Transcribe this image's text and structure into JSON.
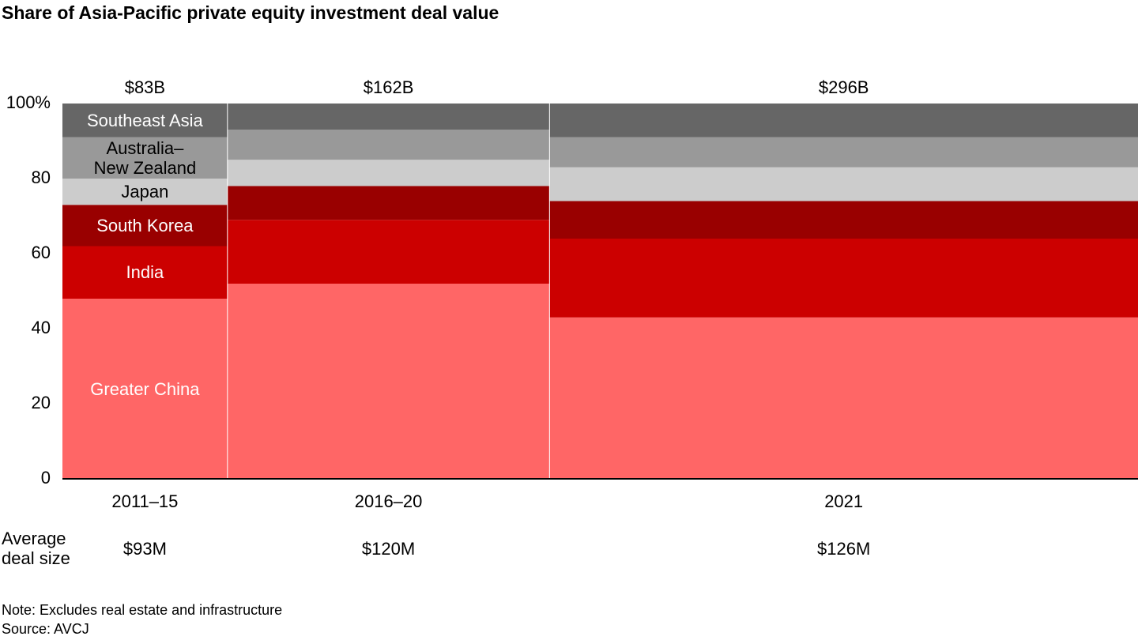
{
  "chart_data": {
    "type": "marimekko",
    "title": "Share of Asia-Pacific private equity investment deal value",
    "categories": [
      "2011–15",
      "2016–20",
      "2021"
    ],
    "totals": [
      83,
      162,
      296
    ],
    "total_labels": [
      "$83B",
      "$162B",
      "$296B"
    ],
    "avg_deal_size_label": "Average\ndeal size",
    "avg_deal_size": [
      93,
      120,
      126
    ],
    "avg_deal_size_labels": [
      "$93M",
      "$120M",
      "$126M"
    ],
    "series": [
      {
        "name": "Greater China",
        "color": "#ff6666",
        "label_color": "#ffffff",
        "values": [
          48,
          52,
          43
        ]
      },
      {
        "name": "India",
        "color": "#cc0000",
        "label_color": "#ffffff",
        "values": [
          14,
          17,
          21
        ]
      },
      {
        "name": "South Korea",
        "color": "#990000",
        "label_color": "#ffffff",
        "values": [
          11,
          9,
          10
        ]
      },
      {
        "name": "Japan",
        "color": "#cccccc",
        "label_color": "#000000",
        "values": [
          7,
          7,
          9
        ]
      },
      {
        "name": "Australia–\nNew Zealand",
        "color": "#999999",
        "label_color": "#000000",
        "values": [
          11,
          8,
          8
        ]
      },
      {
        "name": "Southeast Asia",
        "color": "#666666",
        "label_color": "#ffffff",
        "values": [
          9,
          7,
          9
        ]
      }
    ],
    "ylim": [
      0,
      100
    ],
    "yticks": [
      0,
      20,
      40,
      60,
      80,
      {
        "value": 100,
        "label": "100%"
      }
    ],
    "note": "Note: Excludes real estate and infrastructure",
    "source": "Source: AVCJ"
  }
}
